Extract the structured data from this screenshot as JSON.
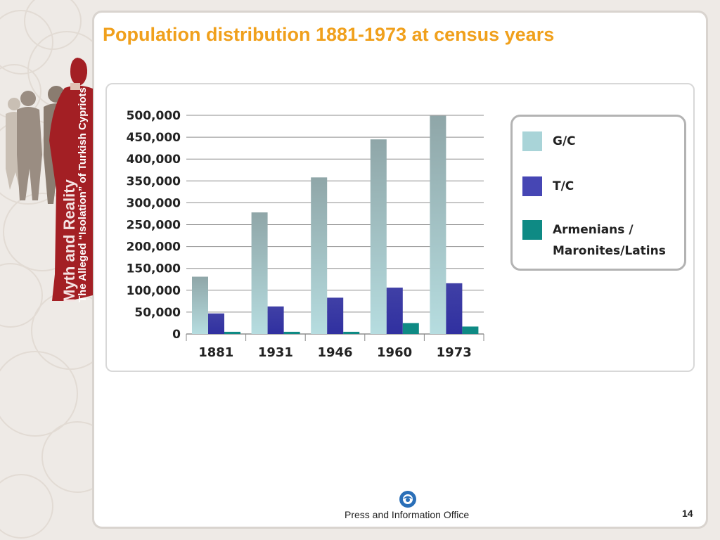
{
  "slide": {
    "title": "Population distribution 1881-1973 at census years",
    "side_banner_line1": "The Alleged “Isolation” of Turkish Cypriots",
    "side_banner_line2": "Myth and Reality",
    "footer_text": "Press and Information Office",
    "page_number": "14"
  },
  "chart_data": {
    "type": "bar",
    "categories": [
      "1881",
      "1931",
      "1946",
      "1960",
      "1973"
    ],
    "series": [
      {
        "name": "G/C",
        "values": [
          131000,
          278000,
          358000,
          445000,
          499000
        ],
        "color": "#a9d4d8"
      },
      {
        "name": "T/C",
        "values": [
          47000,
          63000,
          83000,
          106000,
          116000
        ],
        "color": "#4646b4"
      },
      {
        "name": "Armenians /\nMaronites/Latins",
        "values": [
          5000,
          5000,
          5000,
          25000,
          17000
        ],
        "color": "#0e8a84"
      }
    ],
    "yticks": [
      "500,000",
      "450,000",
      "400,000",
      "350,000",
      "300,000",
      "250,000",
      "200,000",
      "150,000",
      "100,000",
      "50,000",
      "0"
    ],
    "ylim": [
      0,
      500000
    ],
    "grid": true,
    "legend_position": "right",
    "title": "",
    "xlabel": "",
    "ylabel": ""
  }
}
